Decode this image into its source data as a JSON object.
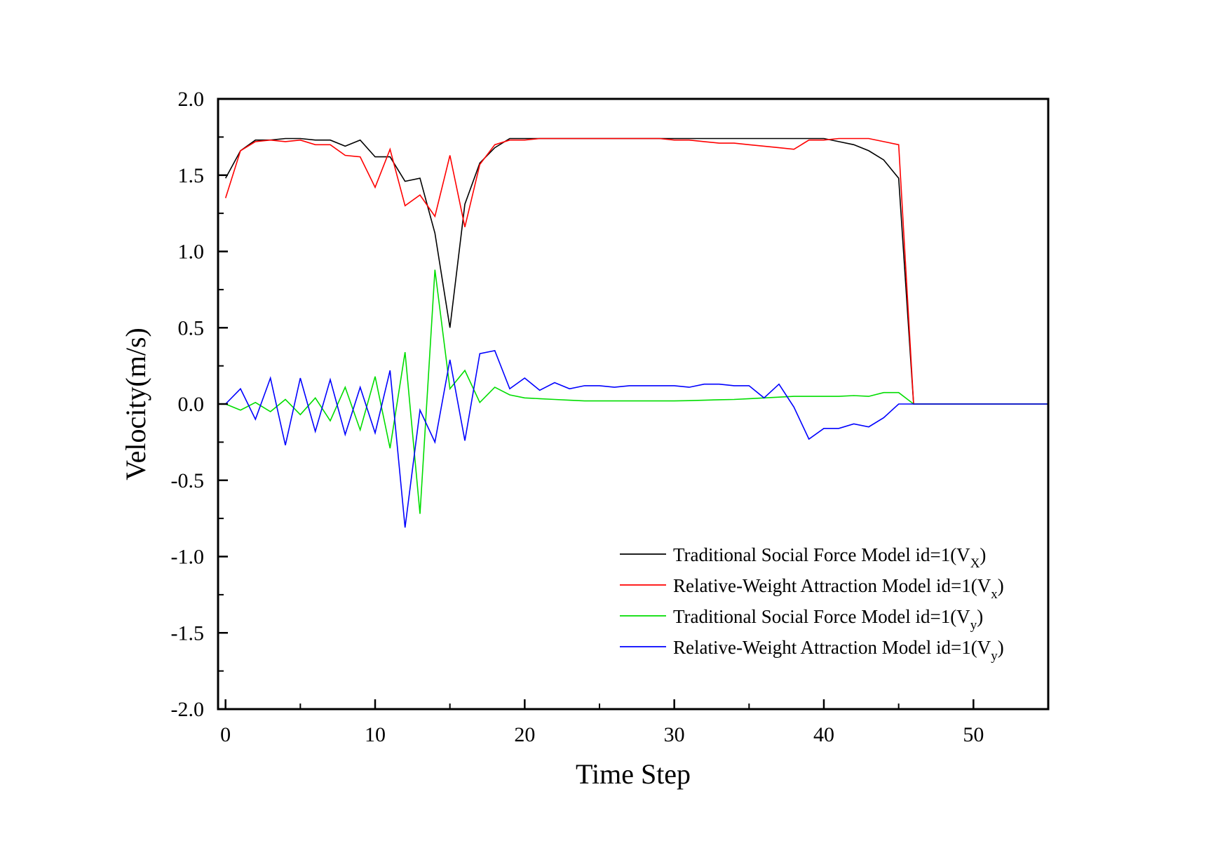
{
  "chart_data": {
    "type": "line",
    "title": "",
    "xlabel": "Time Step",
    "ylabel": "Velocity(m/s)",
    "xlim": [
      -0.5,
      55
    ],
    "ylim": [
      -2.0,
      2.0
    ],
    "x_ticks": [
      0,
      10,
      20,
      30,
      40,
      50
    ],
    "x_tick_labels": [
      "0",
      "10",
      "20",
      "30",
      "40",
      "50"
    ],
    "y_ticks": [
      2.0,
      1.5,
      1.0,
      0.5,
      0.0,
      -0.5,
      -1.0,
      -1.5,
      -2.0
    ],
    "y_tick_labels": [
      "2.0",
      "1.5",
      "1.0",
      "0.5",
      "0.0",
      "-0.5",
      "-1.0",
      "-1.5",
      "-2.0"
    ],
    "grid": false,
    "legend_position": "bottom-right",
    "x": [
      0,
      1,
      2,
      3,
      4,
      5,
      6,
      7,
      8,
      9,
      10,
      11,
      12,
      13,
      14,
      15,
      16,
      17,
      18,
      19,
      20,
      21,
      22,
      23,
      24,
      25,
      26,
      27,
      28,
      29,
      30,
      31,
      32,
      33,
      34,
      35,
      36,
      37,
      38,
      39,
      40,
      41,
      42,
      43,
      44,
      45,
      46,
      47,
      48,
      49,
      50,
      51,
      52,
      53,
      54,
      55
    ],
    "series": [
      {
        "name": "Traditional Social Force Model id=1(V",
        "subscript": "X",
        "suffix": ")",
        "color": "#000000",
        "values": [
          1.48,
          1.66,
          1.73,
          1.73,
          1.74,
          1.74,
          1.73,
          1.73,
          1.69,
          1.73,
          1.62,
          1.62,
          1.46,
          1.48,
          1.12,
          0.5,
          1.31,
          1.58,
          1.68,
          1.74,
          1.74,
          1.74,
          1.74,
          1.74,
          1.74,
          1.74,
          1.74,
          1.74,
          1.74,
          1.74,
          1.74,
          1.74,
          1.74,
          1.74,
          1.74,
          1.74,
          1.74,
          1.74,
          1.74,
          1.74,
          1.74,
          1.72,
          1.7,
          1.66,
          1.6,
          1.48,
          0.0,
          0.0,
          0.0,
          0.0,
          0.0,
          0.0,
          0.0,
          0.0,
          0.0,
          0.0
        ]
      },
      {
        "name": "Relative-Weight Attraction Model id=1(V",
        "subscript": "x",
        "suffix": ")",
        "color": "#ff0000",
        "values": [
          1.35,
          1.66,
          1.72,
          1.73,
          1.72,
          1.73,
          1.7,
          1.7,
          1.63,
          1.62,
          1.42,
          1.67,
          1.3,
          1.37,
          1.23,
          1.63,
          1.16,
          1.57,
          1.7,
          1.73,
          1.73,
          1.74,
          1.74,
          1.74,
          1.74,
          1.74,
          1.74,
          1.74,
          1.74,
          1.74,
          1.73,
          1.73,
          1.72,
          1.71,
          1.71,
          1.7,
          1.69,
          1.68,
          1.67,
          1.73,
          1.73,
          1.74,
          1.74,
          1.74,
          1.72,
          1.7,
          0.0,
          0.0,
          0.0,
          0.0,
          0.0,
          0.0,
          0.0,
          0.0,
          0.0,
          0.0
        ]
      },
      {
        "name": "Traditional Social Force Model id=1(V",
        "subscript": "y",
        "suffix": ")",
        "color": "#00dd00",
        "values": [
          0.0,
          -0.04,
          0.01,
          -0.05,
          0.03,
          -0.07,
          0.04,
          -0.11,
          0.11,
          -0.17,
          0.18,
          -0.29,
          0.34,
          -0.72,
          0.88,
          0.1,
          0.22,
          0.01,
          0.11,
          0.06,
          0.04,
          0.035,
          0.03,
          0.025,
          0.02,
          0.02,
          0.02,
          0.02,
          0.02,
          0.02,
          0.02,
          0.022,
          0.025,
          0.028,
          0.03,
          0.035,
          0.04,
          0.045,
          0.05,
          0.05,
          0.05,
          0.05,
          0.055,
          0.05,
          0.075,
          0.075,
          0.0,
          0.0,
          0.0,
          0.0,
          0.0,
          0.0,
          0.0,
          0.0,
          0.0,
          0.0
        ]
      },
      {
        "name": "Relative-Weight Attraction Model id=1(V",
        "subscript": "y",
        "suffix": ")",
        "color": "#0000ff",
        "values": [
          0.0,
          0.1,
          -0.1,
          0.17,
          -0.27,
          0.17,
          -0.18,
          0.16,
          -0.2,
          0.11,
          -0.19,
          0.22,
          -0.81,
          -0.04,
          -0.25,
          0.29,
          -0.24,
          0.33,
          0.35,
          0.1,
          0.17,
          0.09,
          0.14,
          0.1,
          0.12,
          0.12,
          0.11,
          0.12,
          0.12,
          0.12,
          0.12,
          0.11,
          0.13,
          0.13,
          0.12,
          0.12,
          0.04,
          0.13,
          -0.02,
          -0.23,
          -0.16,
          -0.16,
          -0.13,
          -0.15,
          -0.09,
          0.0,
          0.0,
          0.0,
          0.0,
          0.0,
          0.0,
          0.0,
          0.0,
          0.0,
          0.0,
          0.0
        ]
      }
    ]
  }
}
